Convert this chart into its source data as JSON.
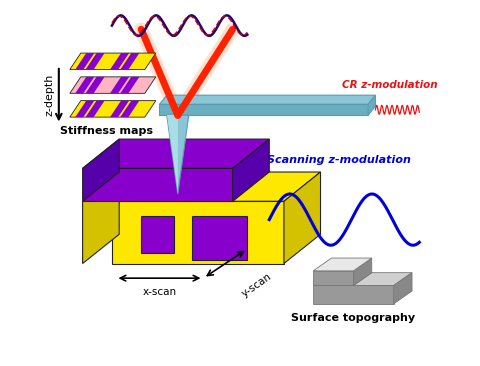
{
  "bg_color": "#ffffff",
  "yellow": "#FFE800",
  "yellow_side": "#D4C200",
  "purple": "#8800CC",
  "purple_dark": "#5500AA",
  "outline": "#222222",
  "cantilever_color": "#8CC5D5",
  "cantilever_edge": "#5A9AB0",
  "cantilever_bottom": "#6AAFC0",
  "tip_color": "#7ABACA",
  "tip_edge": "#4A8A9F",
  "laser_color": "#FF2200",
  "laser_glow": "#FF6633",
  "cr_wave_color": "#EE1111",
  "scan_wave_color": "#0000DD",
  "stiffness_bg1": "#FFE800",
  "stiffness_bg2": "#FFB6C1",
  "stiffness_bg3": "#FFE800",
  "stripe_purple": "#8800CC",
  "surface_top": "#D0D0D0",
  "surface_side": "#999999",
  "surface_bottom": "#888888",
  "labels": {
    "z_depth": "z-depth",
    "stiffness_maps": "Stiffness maps",
    "cr_modulation": "CR z-modulation",
    "scan_modulation": "Scanning z-modulation",
    "x_scan": "x-scan",
    "y_scan": "y-scan",
    "surface_topo": "Surface topography"
  }
}
